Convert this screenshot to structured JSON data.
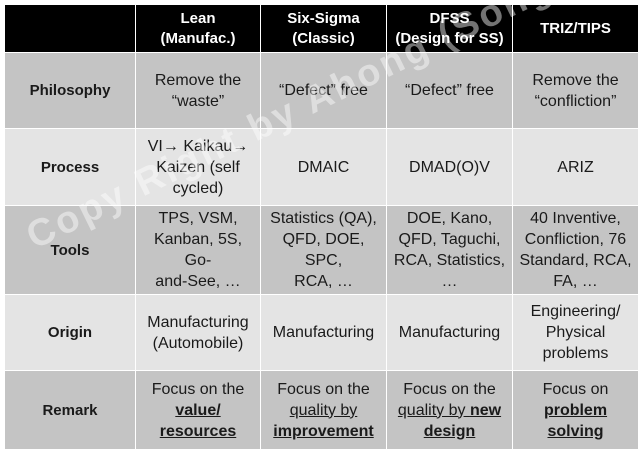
{
  "header": {
    "lean": "Lean\n(Manufac.)",
    "six_sigma": "Six-Sigma\n(Classic)",
    "dfss": "DFSS\n(Design for SS)",
    "triz": "TRIZ/TIPS"
  },
  "rows": {
    "philosophy": {
      "label": "Philosophy",
      "lean": "Remove the\n“waste”",
      "six_sigma": "“Defect” free",
      "dfss": "“Defect” free",
      "triz": "Remove the\n“confliction”"
    },
    "process": {
      "label": "Process",
      "lean": "VI→ Kaikau→\nKaizen (self\ncycled)",
      "six_sigma": "DMAIC",
      "dfss": "DMAD(O)V",
      "triz": "ARIZ"
    },
    "tools": {
      "label": "Tools",
      "lean": "TPS, VSM,\nKanban, 5S, Go-\nand-See, …",
      "six_sigma": "Statistics (QA),\nQFD, DOE, SPC,\nRCA, …",
      "dfss": "DOE, Kano,\nQFD, Taguchi,\nRCA, Statistics,\n…",
      "triz": "40 Inventive,\nConfliction, 76\nStandard, RCA,\nFA, …"
    },
    "origin": {
      "label": "Origin",
      "lean": "Manufacturing\n(Automobile)",
      "six_sigma": "Manufacturing",
      "dfss": "Manufacturing",
      "triz": "Engineering/\nPhysical\nproblems"
    },
    "remark": {
      "label": "Remark",
      "lean_prefix": "Focus on the",
      "lean_emph": "value/\nresources",
      "six_prefix": "Focus on the",
      "six_mid": "quality by",
      "six_emph": "improvement",
      "dfss_prefix": "Focus on the",
      "dfss_mid": "quality by ",
      "dfss_emph1": "new",
      "dfss_emph2": "design",
      "triz_prefix": "Focus on",
      "triz_emph": "problem\nsolving"
    }
  },
  "watermark": "Copy Right by Ahong (Song-Kyoo) Kim",
  "colors": {
    "header_bg": "#000000",
    "row_dark": "#c4c4c4",
    "row_light": "#e4e4e4"
  }
}
